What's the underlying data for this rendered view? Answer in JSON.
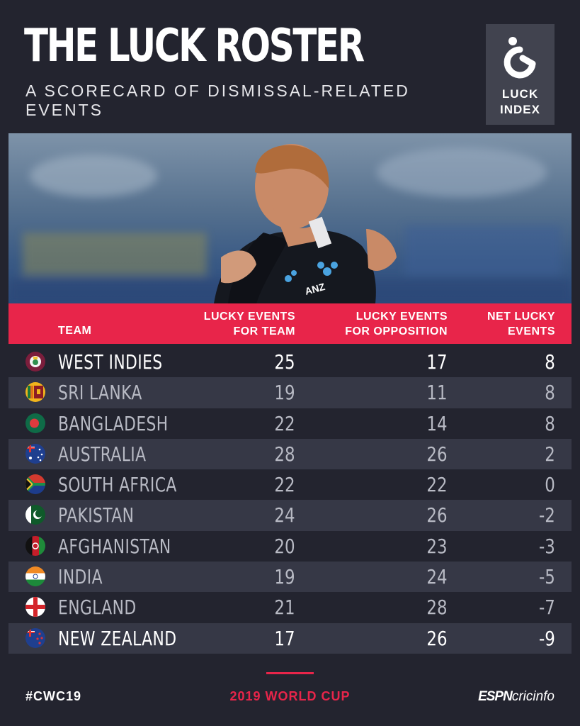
{
  "header": {
    "title": "THE LUCK ROSTER",
    "subtitle": "A SCORECARD OF DISMISSAL-RELATED EVENTS",
    "logo_line1": "LUCK",
    "logo_line2": "INDEX"
  },
  "table": {
    "col_team": "TEAM",
    "col_for_1": "LUCKY EVENTS",
    "col_for_2": "FOR TEAM",
    "col_opp_1": "LUCKY EVENTS",
    "col_opp_2": "FOR OPPOSITION",
    "col_net_1": "NET LUCKY",
    "col_net_2": "EVENTS"
  },
  "chart_data": {
    "type": "table",
    "title": "THE LUCK ROSTER",
    "subtitle": "A SCORECARD OF DISMISSAL-RELATED EVENTS",
    "columns": [
      "TEAM",
      "LUCKY EVENTS FOR TEAM",
      "LUCKY EVENTS FOR OPPOSITION",
      "NET LUCKY EVENTS"
    ],
    "rows": [
      {
        "team": "WEST INDIES",
        "flag": "west-indies",
        "for": "25",
        "opp": "17",
        "net": "8"
      },
      {
        "team": "SRI LANKA",
        "flag": "sri-lanka",
        "for": "19",
        "opp": "11",
        "net": "8"
      },
      {
        "team": "BANGLADESH",
        "flag": "bangladesh",
        "for": "22",
        "opp": "14",
        "net": "8"
      },
      {
        "team": "AUSTRALIA",
        "flag": "australia",
        "for": "28",
        "opp": "26",
        "net": "2"
      },
      {
        "team": "SOUTH AFRICA",
        "flag": "south-africa",
        "for": "22",
        "opp": "22",
        "net": "0"
      },
      {
        "team": "PAKISTAN",
        "flag": "pakistan",
        "for": "24",
        "opp": "26",
        "net": "-2"
      },
      {
        "team": "AFGHANISTAN",
        "flag": "afghanistan",
        "for": "20",
        "opp": "23",
        "net": "-3"
      },
      {
        "team": "INDIA",
        "flag": "india",
        "for": "19",
        "opp": "24",
        "net": "-5"
      },
      {
        "team": "ENGLAND",
        "flag": "england",
        "for": "21",
        "opp": "28",
        "net": "-7"
      },
      {
        "team": "NEW ZEALAND",
        "flag": "new-zealand",
        "for": "17",
        "opp": "26",
        "net": "-9"
      }
    ],
    "highlighted_teams": [
      "WEST INDIES",
      "NEW ZEALAND"
    ]
  },
  "footer": {
    "hashtag": "#CWC19",
    "event": "2019 WORLD CUP",
    "brand_1": "ESPN",
    "brand_2": "cricinfo"
  },
  "colors": {
    "background": "#23242f",
    "accent": "#e8254a",
    "row_alt": "#363846",
    "text_dim": "#b8bac4"
  }
}
